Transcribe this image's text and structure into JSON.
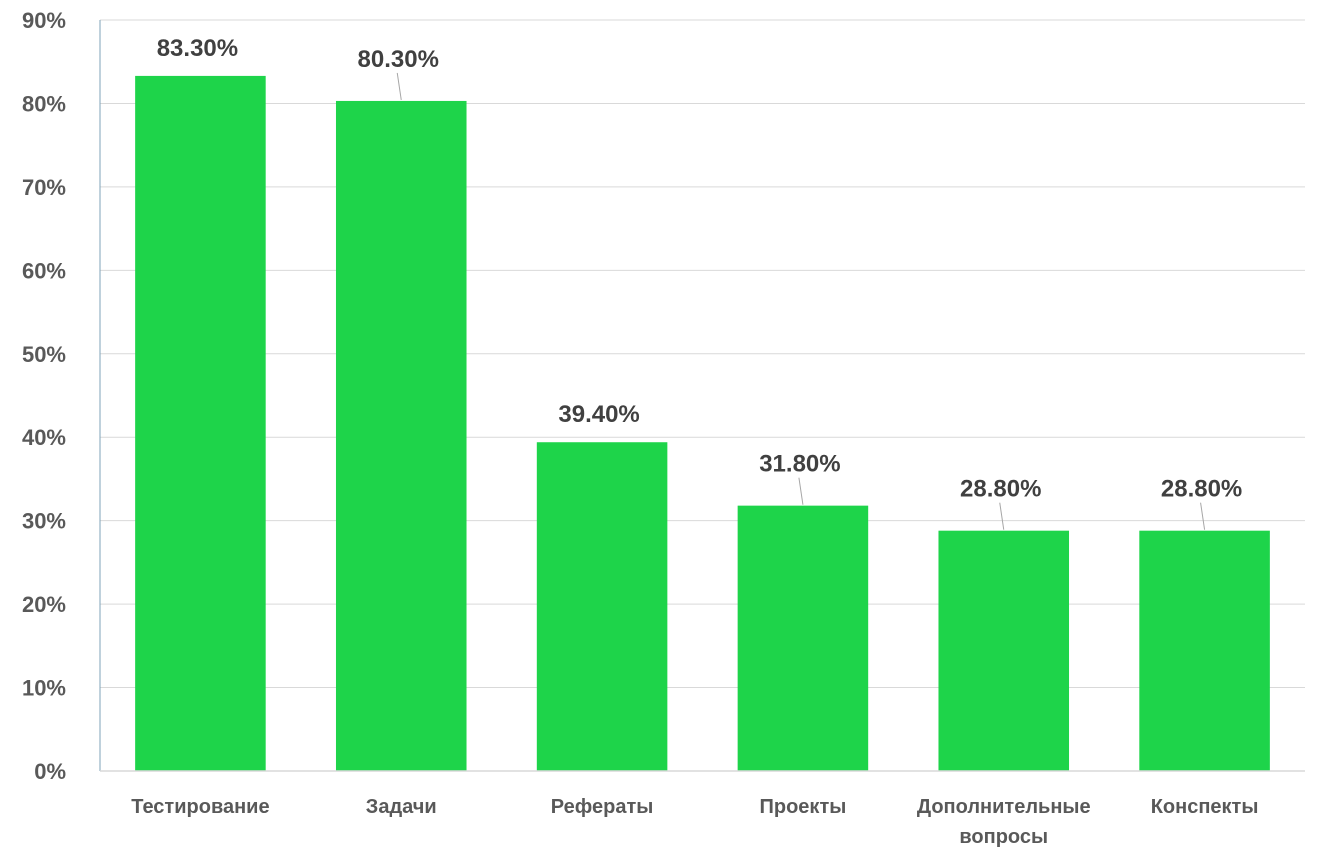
{
  "chart_data": {
    "type": "bar",
    "title": "",
    "xlabel": "",
    "ylabel": "",
    "categories": [
      [
        "Тестирование"
      ],
      [
        "Задачи"
      ],
      [
        "Рефераты"
      ],
      [
        "Проекты"
      ],
      [
        "Дополнительные",
        "вопросы"
      ],
      [
        "Конспекты"
      ]
    ],
    "values": [
      83.3,
      80.3,
      39.4,
      31.8,
      28.8,
      28.8
    ],
    "data_labels": [
      "83.30%",
      "80.30%",
      "39.40%",
      "31.80%",
      "28.80%",
      "28.80%"
    ],
    "ylim": [
      0,
      90
    ],
    "yticks": [
      0,
      10,
      20,
      30,
      40,
      50,
      60,
      70,
      80,
      90
    ],
    "ytick_labels": [
      "0%",
      "10%",
      "20%",
      "30%",
      "40%",
      "50%",
      "60%",
      "70%",
      "80%",
      "90%"
    ],
    "grid": true,
    "legend": "none",
    "colors": {
      "bar": "#1ED44A",
      "grid": "#D9D9D9",
      "axis": "#7FA3B8",
      "tick_text": "#595959",
      "data_label_text": "#404040",
      "leader_line": "#A6A6A6"
    }
  }
}
